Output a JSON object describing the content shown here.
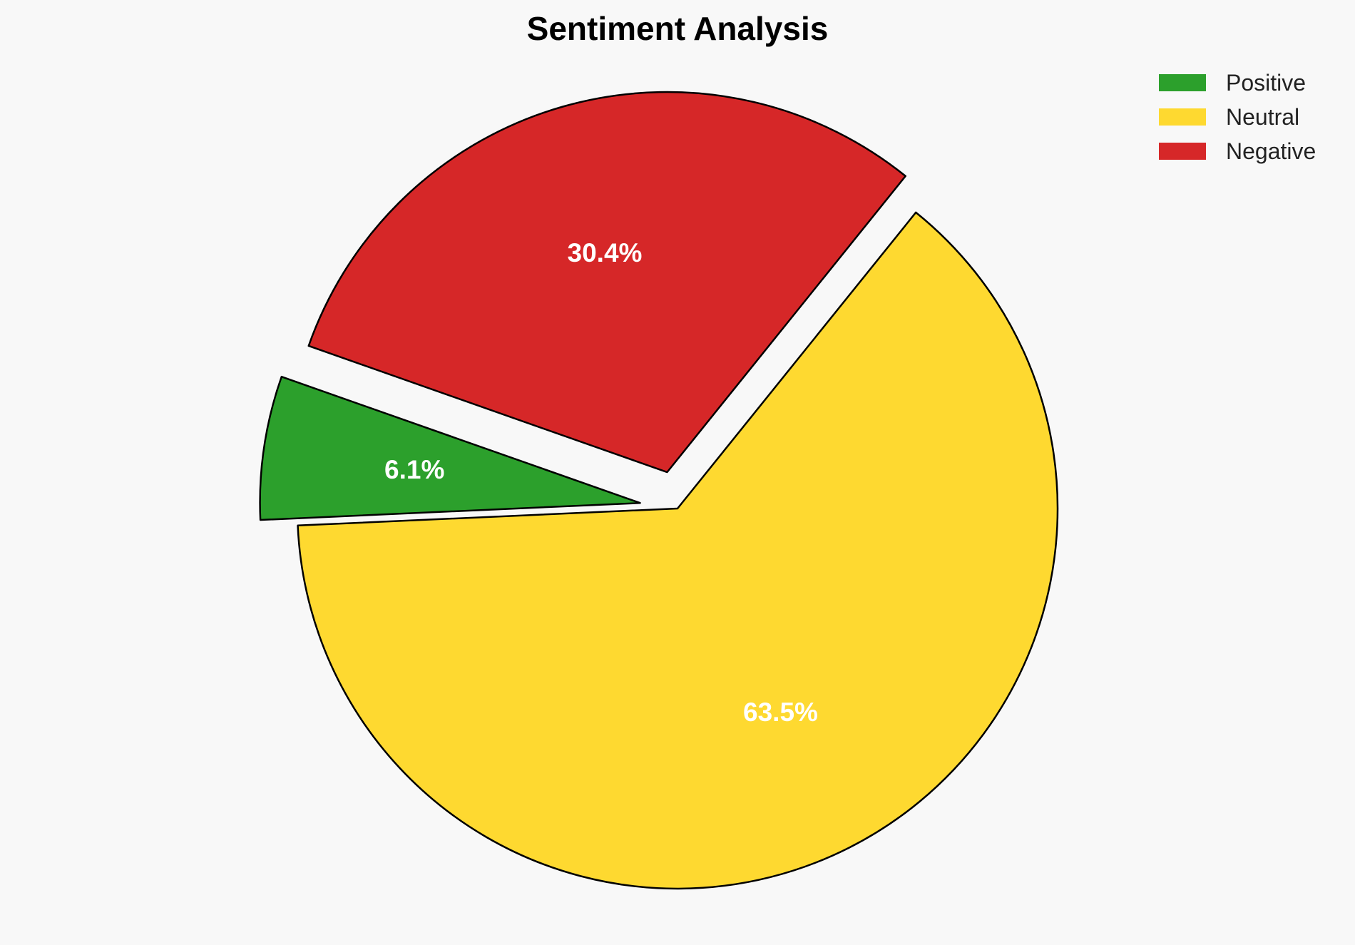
{
  "chart_data": {
    "type": "pie",
    "title": "Sentiment Analysis",
    "slices": [
      {
        "label": "Positive",
        "value": 6.1,
        "display": "6.1%",
        "color": "#2ca02c"
      },
      {
        "label": "Neutral",
        "value": 63.5,
        "display": "63.5%",
        "color": "#fed930"
      },
      {
        "label": "Negative",
        "value": 30.4,
        "display": "30.4%",
        "color": "#d62728"
      }
    ],
    "exploded": [
      "Positive",
      "Negative"
    ],
    "legend_position": "top-right",
    "edge_color": "#000000"
  }
}
